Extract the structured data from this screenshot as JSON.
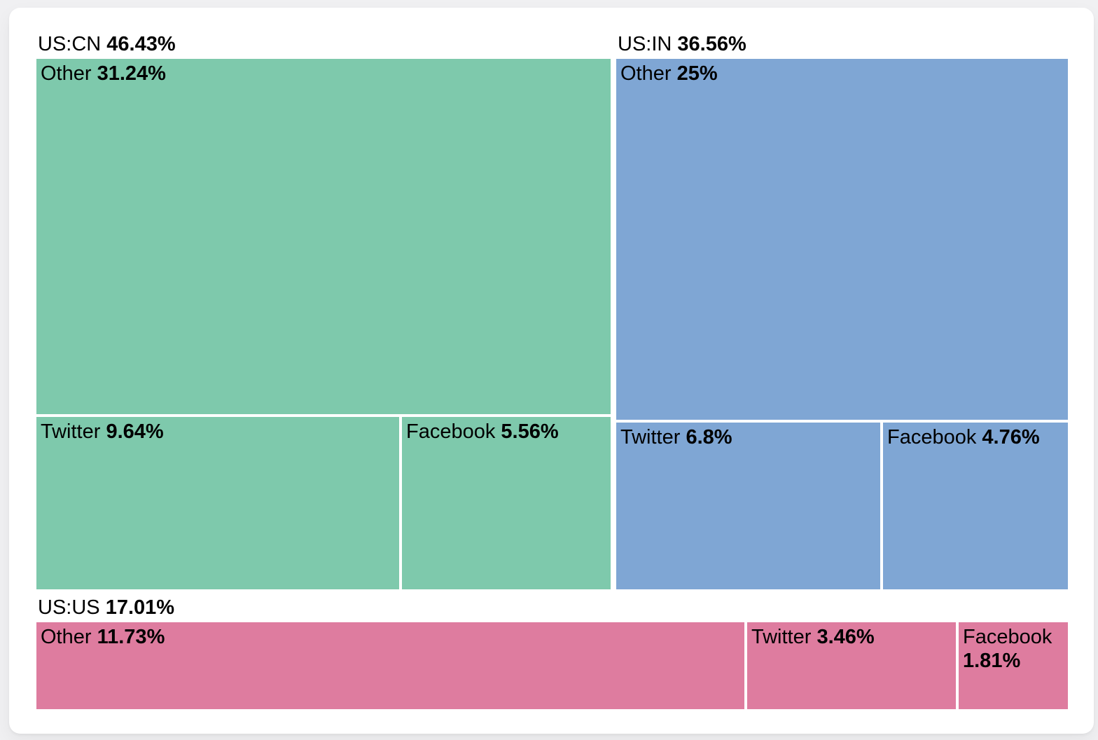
{
  "chart_data": {
    "type": "treemap",
    "title": "",
    "legend": "none",
    "grid": "off",
    "unit": "percent",
    "colors": {
      "us_cn": "#7EC9AC",
      "us_in": "#7FA6D4",
      "us_us": "#DE7C9F"
    },
    "groups": [
      {
        "label": "US:CN",
        "pct": "46.43%",
        "value": 46.43,
        "color": "#7EC9AC",
        "layout": "stack",
        "children": [
          {
            "label": "Other",
            "pct": "31.24%",
            "value": 31.24
          },
          {
            "label": "Twitter",
            "pct": "9.64%",
            "value": 9.64
          },
          {
            "label": "Facebook",
            "pct": "5.56%",
            "value": 5.56
          }
        ]
      },
      {
        "label": "US:IN",
        "pct": "36.56%",
        "value": 36.56,
        "color": "#7FA6D4",
        "layout": "stack",
        "children": [
          {
            "label": "Other",
            "pct": "25%",
            "value": 25
          },
          {
            "label": "Twitter",
            "pct": "6.8%",
            "value": 6.8
          },
          {
            "label": "Facebook",
            "pct": "4.76%",
            "value": 4.76
          }
        ]
      },
      {
        "label": "US:US",
        "pct": "17.01%",
        "value": 17.01,
        "color": "#DE7C9F",
        "layout": "row",
        "children": [
          {
            "label": "Other",
            "pct": "11.73%",
            "value": 11.73
          },
          {
            "label": "Twitter",
            "pct": "3.46%",
            "value": 3.46
          },
          {
            "label": "Facebook",
            "pct": "1.81%",
            "value": 1.81
          }
        ]
      }
    ]
  }
}
